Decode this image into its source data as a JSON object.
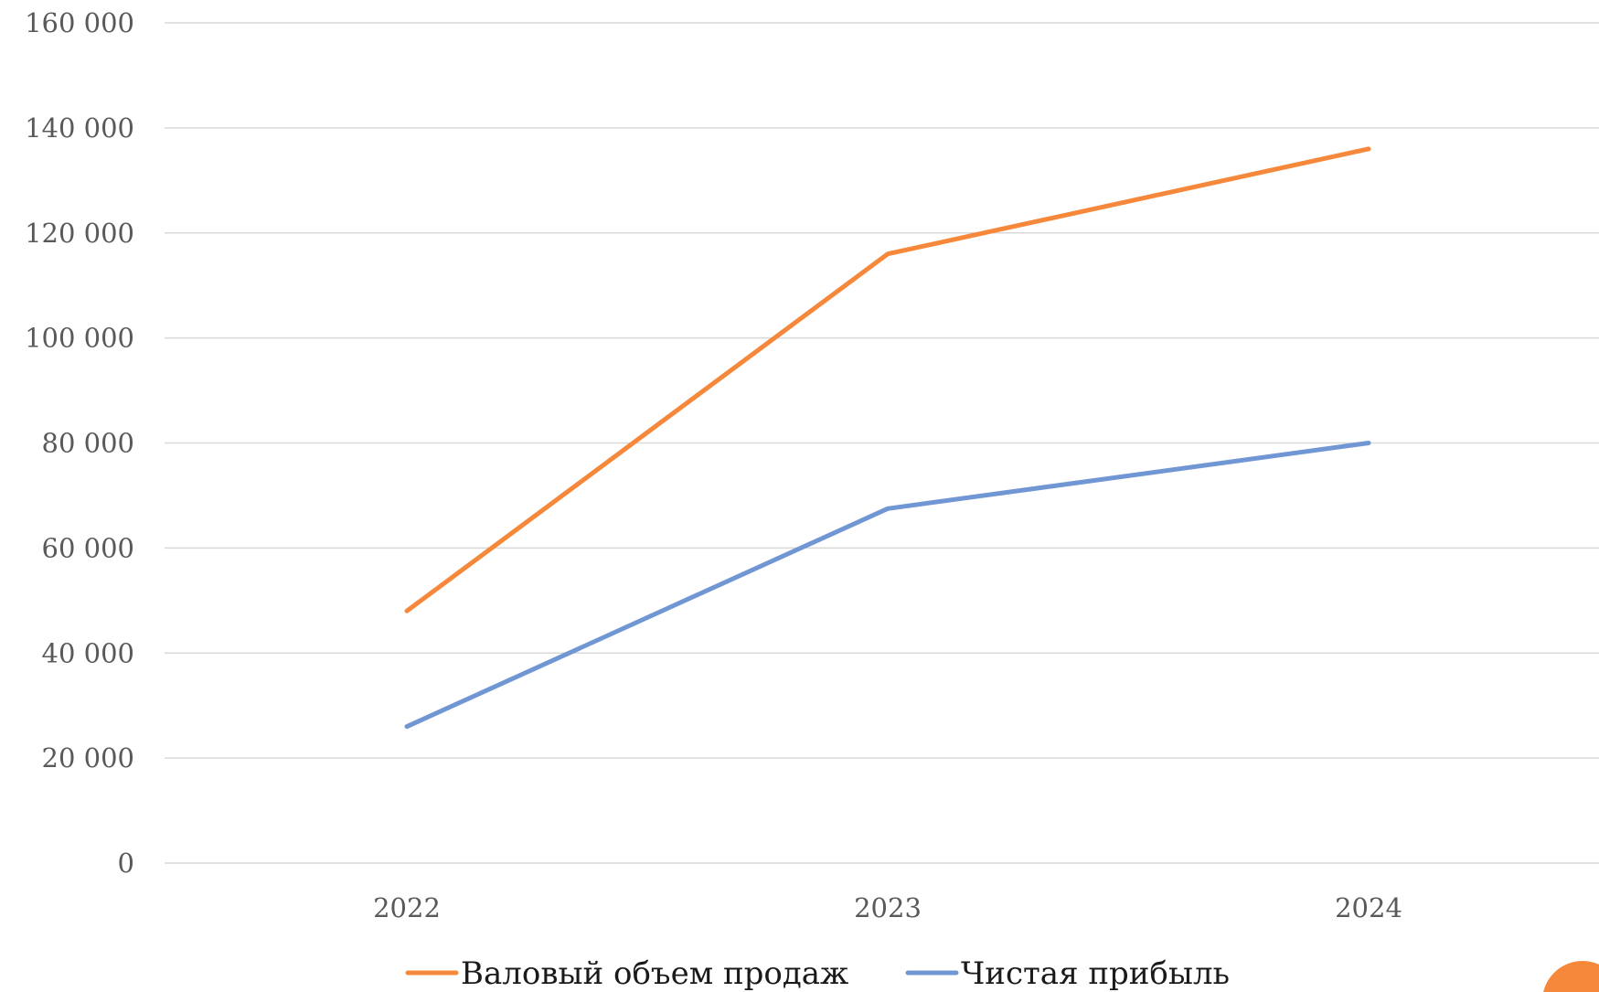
{
  "chart_data": {
    "type": "line",
    "title": "",
    "xlabel": "",
    "ylabel": "",
    "categories": [
      "2022",
      "2023",
      "2024"
    ],
    "ylim": [
      0,
      160000
    ],
    "y_ticks": [
      0,
      20000,
      40000,
      60000,
      80000,
      100000,
      120000,
      140000,
      160000
    ],
    "y_tick_labels": [
      "0",
      "20 000",
      "40 000",
      "60 000",
      "80 000",
      "100 000",
      "120 000",
      "140 000",
      "160 000"
    ],
    "grid": true,
    "legend_position": "bottom",
    "series": [
      {
        "name": "Валовый объем продаж",
        "values": [
          48000,
          116000,
          136000
        ],
        "color": "#f5883a"
      },
      {
        "name": "Чистая прибыль",
        "values": [
          26000,
          67500,
          80000
        ],
        "color": "#7097d4"
      }
    ]
  },
  "decor": {
    "corner_circle_color": "#f5883a"
  }
}
